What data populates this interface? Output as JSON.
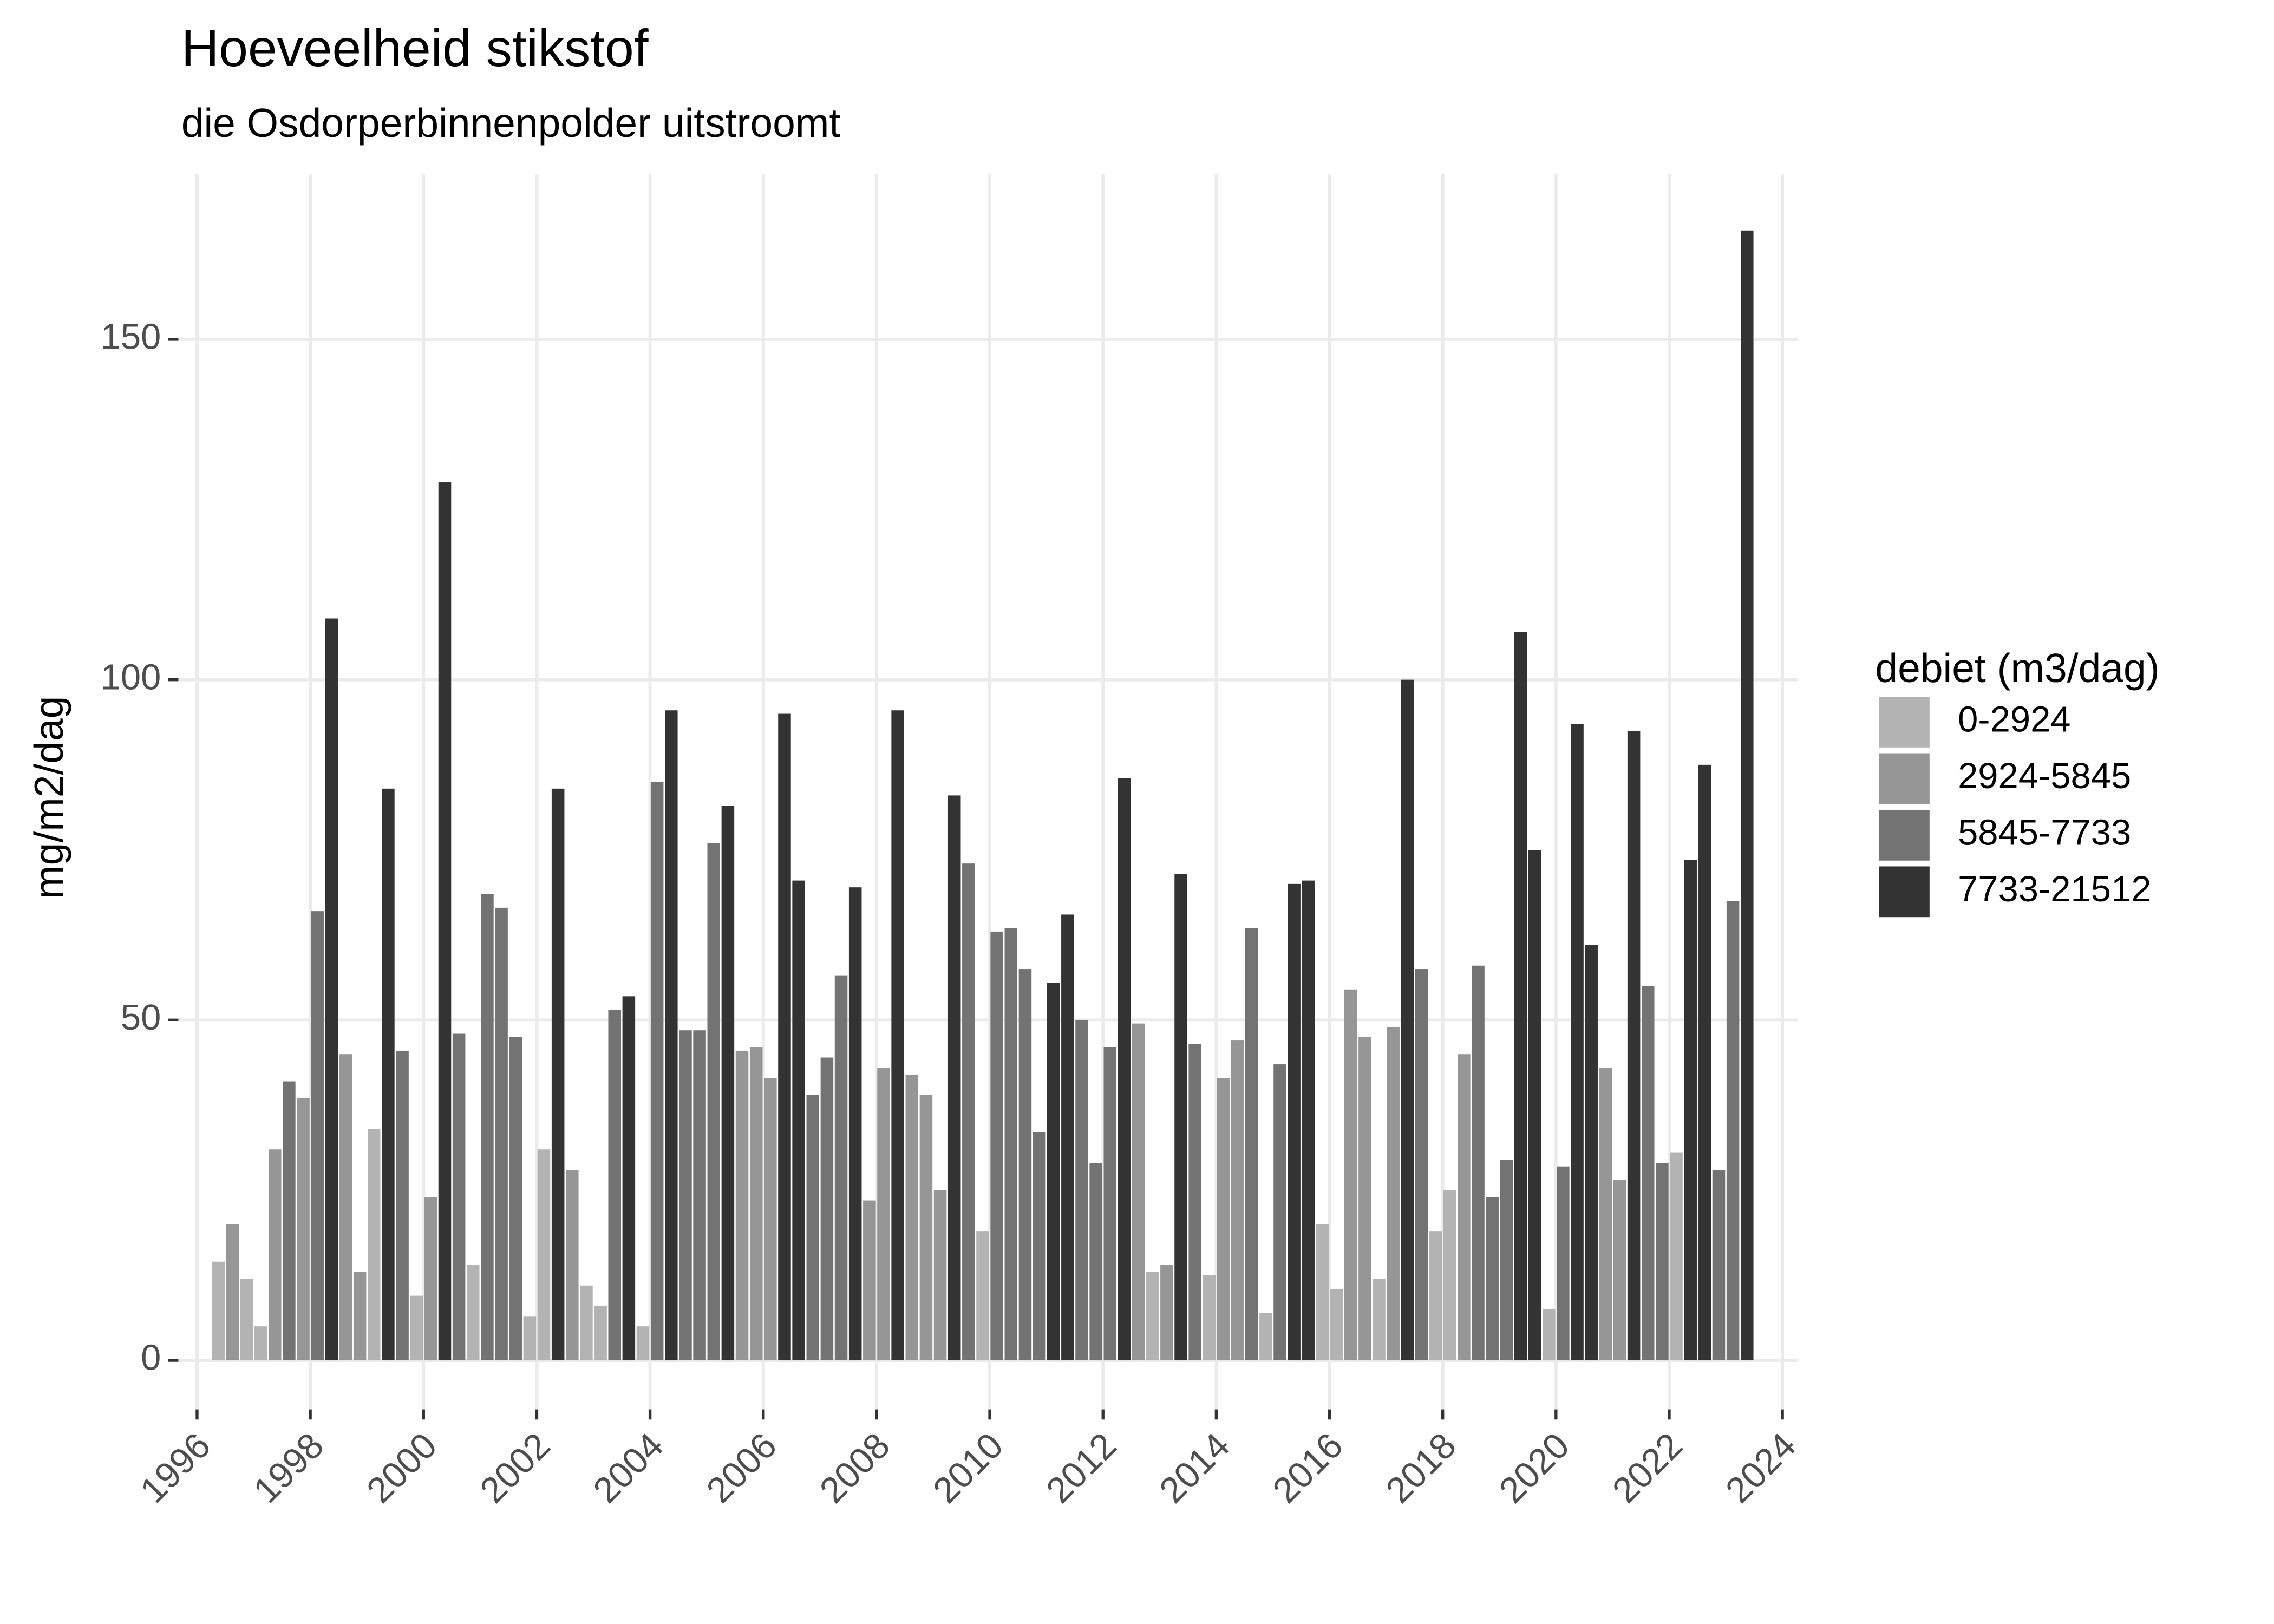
{
  "chart_data": {
    "type": "bar",
    "title": "Hoeveelheid stikstof",
    "subtitle": "die Osdorperbinnenpolder uitstroomt",
    "y_label": "mg/m2/dag",
    "legend_title": "debiet (m3/dag)",
    "legend_position": "right",
    "grid": true,
    "xlim": [
      1995.67,
      2024.28
    ],
    "ylim": [
      -7.2,
      174.3
    ],
    "xticks": [
      1996,
      1998,
      2000,
      2002,
      2004,
      2006,
      2008,
      2010,
      2012,
      2014,
      2016,
      2018,
      2020,
      2022,
      2024
    ],
    "yticks": [
      0,
      50,
      100,
      150
    ],
    "series": [
      {
        "name": "0-2924",
        "color": "#b3b3b3",
        "x": [
          1996.375,
          1996.875,
          1997.125,
          1999.125,
          1999.875,
          2000.875,
          2001.875,
          2002.125,
          2002.875,
          2003.125,
          2003.875,
          2009.875,
          2012.875,
          2013.875,
          2014.875,
          2015.875,
          2016.125,
          2016.875,
          2017.875,
          2018.125,
          2019.875,
          2022.125
        ],
        "values": [
          14.5,
          12,
          5,
          34,
          9.5,
          14,
          6.5,
          31,
          11,
          8,
          5,
          19,
          13,
          12.5,
          7,
          20,
          10.5,
          12,
          19,
          25,
          7.5,
          30.5
        ]
      },
      {
        "name": "2924-5845",
        "color": "#969696",
        "x": [
          1996.625,
          1997.375,
          1997.875,
          1998.625,
          1998.875,
          2000.125,
          2002.625,
          2005.625,
          2005.875,
          2006.125,
          2007.875,
          2008.125,
          2008.625,
          2008.875,
          2009.125,
          2012.625,
          2013.125,
          2014.125,
          2014.375,
          2016.375,
          2016.625,
          2017.125,
          2018.375,
          2020.875,
          2021.125
        ],
        "values": [
          20,
          31,
          38.5,
          45,
          13,
          24,
          28,
          45.5,
          46,
          41.5,
          23.5,
          43,
          42,
          39,
          25,
          49.5,
          14,
          41.5,
          47,
          54.5,
          47.5,
          49,
          45,
          43,
          26.5
        ]
      },
      {
        "name": "5845-7733",
        "color": "#737373",
        "x": [
          1997.625,
          1998.125,
          1999.625,
          2000.625,
          2001.125,
          2001.375,
          2001.625,
          2003.375,
          2004.125,
          2004.625,
          2004.875,
          2005.125,
          2006.875,
          2007.125,
          2007.375,
          2009.625,
          2010.125,
          2010.375,
          2010.625,
          2010.875,
          2011.625,
          2011.875,
          2012.125,
          2013.625,
          2014.625,
          2015.125,
          2017.625,
          2018.625,
          2018.875,
          2019.125,
          2020.125,
          2021.625,
          2021.875,
          2022.875,
          2023.125
        ],
        "values": [
          41,
          66,
          45.5,
          48,
          68.5,
          66.5,
          47.5,
          51.5,
          85,
          48.5,
          48.5,
          76,
          39,
          44.5,
          56.5,
          73,
          63,
          63.5,
          57.5,
          33.5,
          50,
          29,
          46,
          46.5,
          63.5,
          43.5,
          57.5,
          58,
          24,
          29.5,
          28.5,
          55,
          29,
          28,
          67.5
        ]
      },
      {
        "name": "7733-21512",
        "color": "#333333",
        "x": [
          1998.375,
          1999.375,
          2000.375,
          2002.375,
          2003.625,
          2004.375,
          2005.375,
          2006.375,
          2006.625,
          2007.625,
          2008.375,
          2009.375,
          2011.125,
          2011.375,
          2012.375,
          2013.375,
          2015.375,
          2015.625,
          2017.375,
          2019.375,
          2019.625,
          2020.375,
          2020.625,
          2021.375,
          2022.375,
          2022.625,
          2023.375
        ],
        "values": [
          109,
          84,
          129,
          84,
          53.5,
          95.5,
          81.5,
          95,
          70.5,
          69.5,
          95.5,
          83,
          55.5,
          65.5,
          85.5,
          71.5,
          70,
          70.5,
          100,
          107,
          75,
          93.5,
          61,
          92.5,
          73.5,
          87.5,
          166
        ]
      }
    ]
  }
}
